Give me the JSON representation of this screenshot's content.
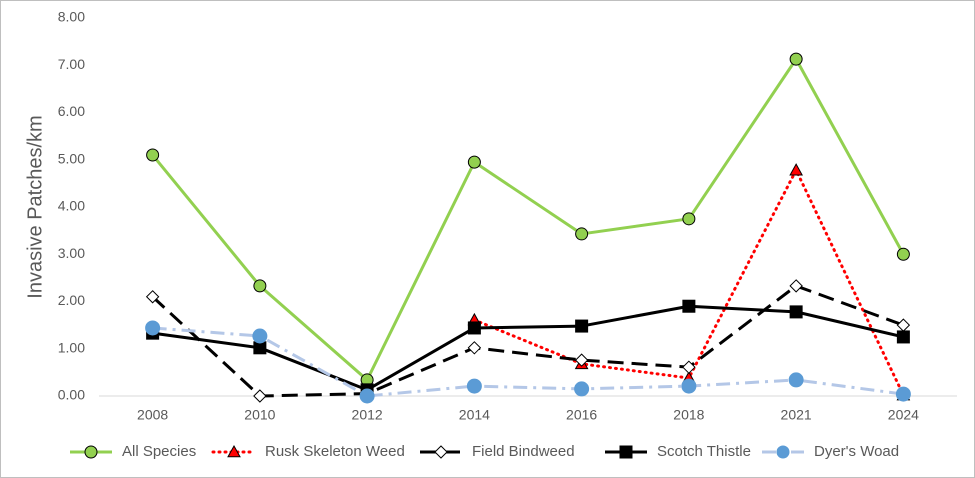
{
  "chart_data": {
    "type": "line",
    "y_label": "Invasive Patches/km",
    "categories": [
      "2008",
      "2010",
      "2012",
      "2014",
      "2016",
      "2018",
      "2021",
      "2024"
    ],
    "ylim": [
      0,
      8
    ],
    "yticks": [
      {
        "value": 0,
        "label": "0.00"
      },
      {
        "value": 1,
        "label": "1.00"
      },
      {
        "value": 2,
        "label": "2.00"
      },
      {
        "value": 3,
        "label": "3.00"
      },
      {
        "value": 4,
        "label": "4.00"
      },
      {
        "value": 5,
        "label": "5.00"
      },
      {
        "value": 6,
        "label": "6.00"
      },
      {
        "value": 7,
        "label": "7.00"
      },
      {
        "value": 8,
        "label": "8.00"
      }
    ],
    "legend": "bottom",
    "series": [
      {
        "name": "All Species",
        "color": "#92d050",
        "marker": "circle",
        "marker_fill": "#92d050",
        "line_style": "solid",
        "values": [
          5.1,
          2.33,
          0.34,
          4.95,
          3.43,
          3.75,
          7.13,
          3.0
        ]
      },
      {
        "name": "Rusk Skeleton Weed",
        "color": "#ff0000",
        "marker": "triangle",
        "marker_fill": "#ff0000",
        "line_style": "dotted",
        "values": [
          null,
          null,
          null,
          1.61,
          0.68,
          0.38,
          4.78,
          0.02
        ]
      },
      {
        "name": "Field Bindweed",
        "color": "#000000",
        "marker": "diamond",
        "marker_fill": "#ffffff",
        "line_style": "dashed",
        "values": [
          2.1,
          0.0,
          0.05,
          1.02,
          0.76,
          0.61,
          2.33,
          1.5
        ]
      },
      {
        "name": "Scotch Thistle",
        "color": "#000000",
        "marker": "square",
        "marker_fill": "#000000",
        "line_style": "solid",
        "values": [
          1.33,
          1.02,
          0.13,
          1.44,
          1.48,
          1.9,
          1.78,
          1.25
        ]
      },
      {
        "name": "Dyer's Woad",
        "color": "#b4c7e7",
        "marker": "circle",
        "marker_fill": "#5b9bd5",
        "line_style": "dashdot",
        "values": [
          1.44,
          1.27,
          0.0,
          0.21,
          0.15,
          0.21,
          0.34,
          0.04
        ]
      }
    ]
  }
}
